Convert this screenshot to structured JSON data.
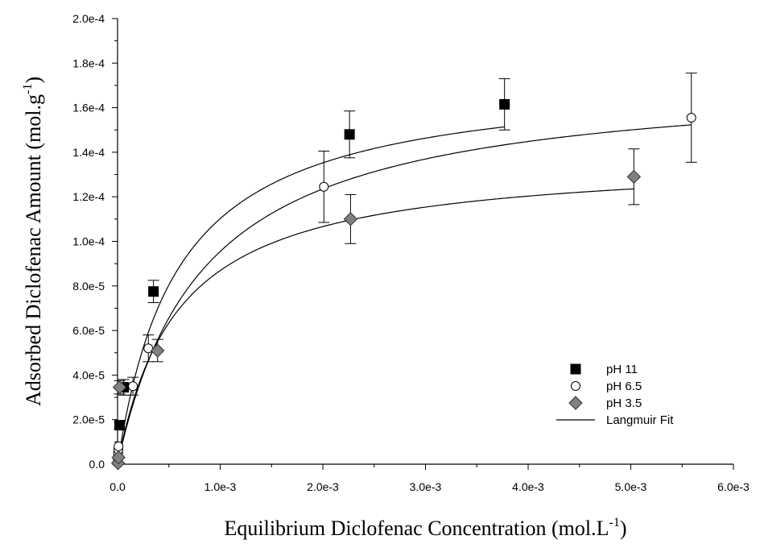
{
  "chart_data": {
    "type": "scatter",
    "xlabel": "Equilibrium Diclofenac Concentration (mol.L",
    "xlabel_sup": "-1",
    "xlabel_end": ")",
    "ylabel": "Adsorbed  Diclofenac Amount (mol.g",
    "ylabel_sup": "-1",
    "ylabel_end": ")",
    "xlim": [
      0,
      0.006
    ],
    "ylim": [
      0,
      0.0002
    ],
    "x_ticks": [
      0,
      0.001,
      0.002,
      0.003,
      0.004,
      0.005,
      0.006
    ],
    "x_tick_labels": [
      "0.0",
      "1.0e-3",
      "2.0e-3",
      "3.0e-3",
      "4.0e-3",
      "5.0e-3",
      "6.0e-3"
    ],
    "y_ticks": [
      0,
      2e-05,
      4e-05,
      6e-05,
      8e-05,
      0.0001,
      0.00012,
      0.00014,
      0.00016,
      0.00018,
      0.0002
    ],
    "y_tick_labels": [
      "0.0",
      "2.0e-5",
      "4.0e-5",
      "6.0e-5",
      "8.0e-5",
      "1.0e-4",
      "1.2e-4",
      "1.4e-4",
      "1.6e-4",
      "1.8e-4",
      "2.0e-4"
    ],
    "legend_position": "lower-right",
    "series": [
      {
        "name": "pH 11",
        "marker": "square",
        "color": "#000000",
        "fill": "#000000",
        "points": [
          {
            "x": 2e-05,
            "y": 1.75e-05,
            "err": 1.5e-06
          },
          {
            "x": 6e-05,
            "y": 3.45e-05,
            "err": 3.5e-06
          },
          {
            "x": 0.00035,
            "y": 7.75e-05,
            "err": 5e-06
          },
          {
            "x": 0.00226,
            "y": 0.000148,
            "err": 1.05e-05
          },
          {
            "x": 0.00377,
            "y": 0.0001615,
            "err": 1.15e-05
          }
        ]
      },
      {
        "name": "pH 6.5",
        "marker": "circle",
        "color": "#000000",
        "fill": "#ffffff",
        "points": [
          {
            "x": 2e-06,
            "y": 5e-07
          },
          {
            "x": 3e-06,
            "y": 2e-06
          },
          {
            "x": 4e-06,
            "y": 3.5e-06
          },
          {
            "x": 6e-06,
            "y": 5e-06
          },
          {
            "x": 8e-06,
            "y": 6.5e-06
          },
          {
            "x": 1e-05,
            "y": 8e-06
          },
          {
            "x": 0.00015,
            "y": 3.5e-05,
            "err": 4e-06
          },
          {
            "x": 0.0003,
            "y": 5.2e-05,
            "err": 6e-06
          },
          {
            "x": 0.00201,
            "y": 0.0001245,
            "err": 1.6e-05
          },
          {
            "x": 0.00559,
            "y": 0.0001555,
            "err": 2e-05
          }
        ]
      },
      {
        "name": "pH 3.5",
        "marker": "diamond",
        "color": "#333333",
        "fill": "#808080",
        "points": [
          {
            "x": 5e-06,
            "y": 5e-07
          },
          {
            "x": 1e-05,
            "y": 3e-06
          },
          {
            "x": 2e-05,
            "y": 3.45e-05,
            "err": 3e-06
          },
          {
            "x": 0.00039,
            "y": 5.1e-05,
            "err": 5e-06
          },
          {
            "x": 0.00227,
            "y": 0.00011,
            "err": 1.1e-05
          },
          {
            "x": 0.00503,
            "y": 0.000129,
            "err": 1.25e-05
          }
        ]
      }
    ],
    "fits": [
      {
        "name": "Langmuir Fit",
        "qmax": 0.000175,
        "K": 1700,
        "x_end": 0.00377
      },
      {
        "name": "Langmuir Fit",
        "qmax": 0.000175,
        "K": 1200,
        "x_end": 0.00559
      },
      {
        "name": "Langmuir Fit",
        "qmax": 0.000138,
        "K": 1700,
        "x_end": 0.00503
      }
    ],
    "legend": [
      {
        "label": "pH 11",
        "marker": "square"
      },
      {
        "label": "pH 6.5",
        "marker": "circle"
      },
      {
        "label": "pH 3.5",
        "marker": "diamond"
      },
      {
        "label": "Langmuir Fit",
        "marker": "line"
      }
    ]
  }
}
